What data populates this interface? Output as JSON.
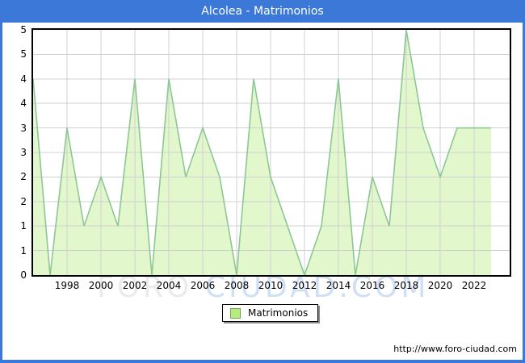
{
  "titlebar": {
    "title": "Alcolea - Matrimonios"
  },
  "watermark": {
    "part1": "FORO",
    "part2": "CIUDAD.COM"
  },
  "footer": {
    "url_text": "http://www.foro-ciudad.com"
  },
  "colors": {
    "titlebar_blue": "#3c78d8",
    "frame_blue": "#3c78d8",
    "plot_border": "#000000",
    "grid": "#d0d0d0",
    "area_fill": "#e2f7cc",
    "line_stroke": "#8cc795",
    "legend_swatch": "#b4ec7e",
    "legend_swatch_border": "#7e9e60",
    "watermark_gray": "#ebebeb",
    "watermark_blue": "#cfdff4"
  },
  "chart_data": {
    "type": "area",
    "title": "Alcolea - Matrimonios",
    "series_name": "Matrimonios",
    "x": [
      1996,
      1997,
      1998,
      1999,
      2000,
      2001,
      2002,
      2003,
      2004,
      2005,
      2006,
      2007,
      2008,
      2009,
      2010,
      2011,
      2012,
      2013,
      2014,
      2015,
      2016,
      2017,
      2018,
      2019,
      2020,
      2021,
      2022,
      2023
    ],
    "values": [
      4,
      0,
      3,
      1,
      2,
      1,
      4,
      0,
      4,
      2,
      3,
      2,
      0,
      4,
      2,
      1,
      0,
      1,
      4,
      0,
      2,
      1,
      5,
      3,
      2,
      3,
      3,
      3
    ],
    "ylim": [
      0,
      5
    ],
    "y_tick_step": 0.5,
    "y_tick_labels_top_to_bottom": [
      "5",
      "5",
      "4",
      "4",
      "3",
      "3",
      "2",
      "2",
      "1",
      "1",
      "0"
    ],
    "x_ticks": [
      1998,
      2000,
      2002,
      2004,
      2006,
      2008,
      2010,
      2012,
      2014,
      2016,
      2018,
      2020,
      2022
    ],
    "x_axis_extends_to": 2024,
    "grid": true,
    "legend_position": "bottom-center"
  }
}
